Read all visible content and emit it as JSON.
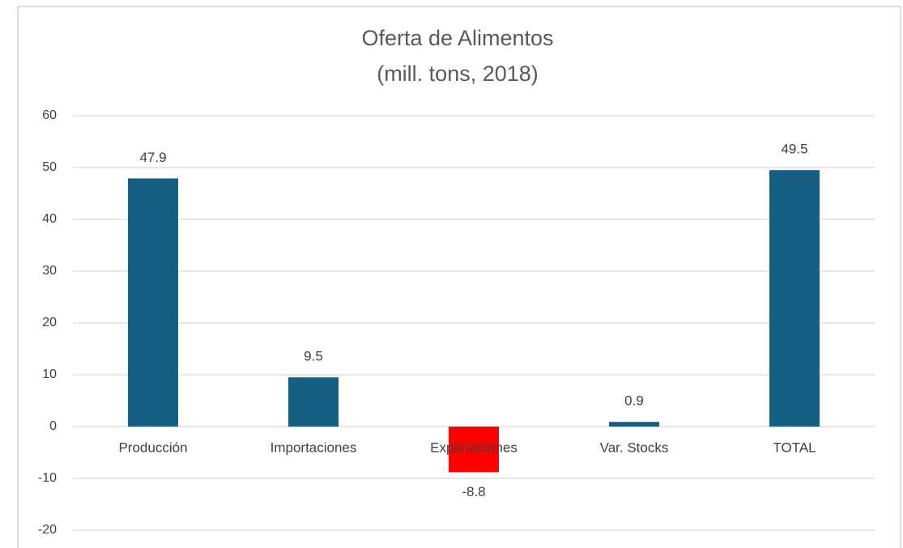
{
  "chart_data": {
    "type": "bar",
    "title": "Oferta de Alimentos",
    "subtitle": "(mill. tons, 2018)",
    "categories": [
      "Producción",
      "Importaciones",
      "Exportaciones",
      "Var. Stocks",
      "TOTAL"
    ],
    "values": [
      47.9,
      9.5,
      -8.8,
      0.9,
      49.5
    ],
    "colors": [
      "#155f83",
      "#155f83",
      "#ff0000",
      "#155f83",
      "#155f83"
    ],
    "ylim": [
      -20,
      60
    ],
    "yticks": [
      -20,
      -10,
      0,
      10,
      20,
      30,
      40,
      50,
      60
    ],
    "grid": true
  }
}
